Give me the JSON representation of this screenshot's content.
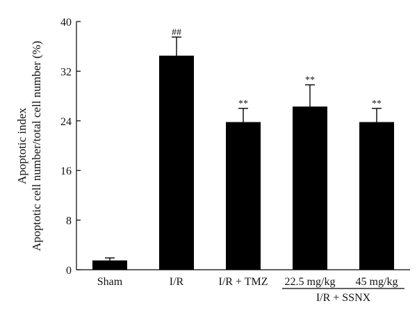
{
  "chart_data": {
    "type": "bar",
    "title": "",
    "ylabel_line1": "Apoptotic index",
    "ylabel_line2": "Apoptotic cell number/total cell number (%)",
    "xlabel": "",
    "ylim": [
      0,
      40
    ],
    "yticks": [
      0,
      8,
      16,
      24,
      32,
      40
    ],
    "categories": [
      "Sham",
      "I/R",
      "I/R + TMZ",
      "22.5 mg/kg",
      "45 mg/kg"
    ],
    "values": [
      1.5,
      34.5,
      23.8,
      26.3,
      23.8
    ],
    "errors": [
      0.4,
      3.0,
      2.2,
      3.5,
      2.2
    ],
    "annotations": [
      "",
      "##",
      "**",
      "**",
      "**"
    ],
    "group_label": "I/R + SSNX",
    "group_categories": [
      3,
      4
    ],
    "bar_color": "#000000",
    "grid": false,
    "legend": "none"
  }
}
